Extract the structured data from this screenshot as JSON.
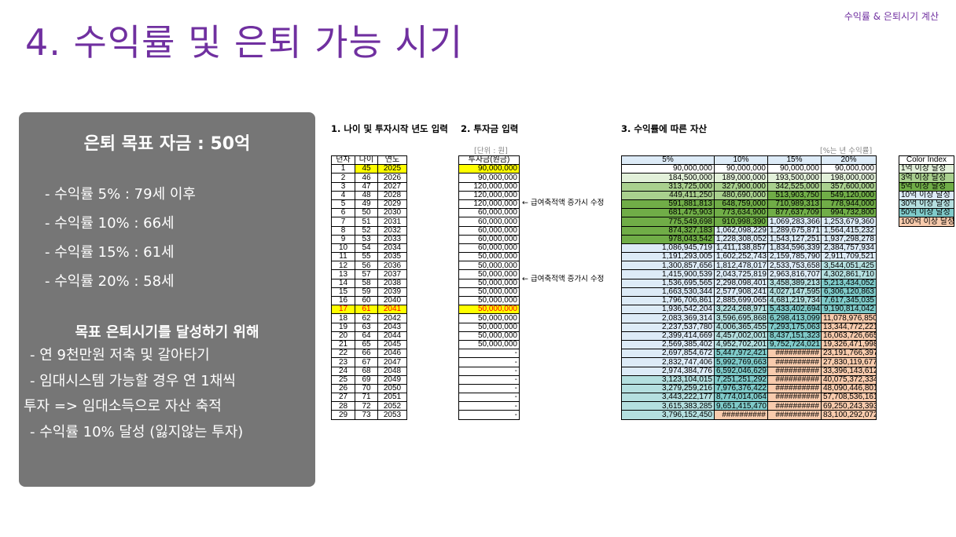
{
  "corner_label": "수익률 & 은퇴시기 계산",
  "title": "4. 수익률 및 은퇴 가능 시기",
  "panel": {
    "heading": "은퇴 목표 자금 : 50억",
    "lines": [
      "- 수익률   5% : 79세 이후",
      "- 수익률 10% : 66세",
      "- 수익률 15% : 61세",
      "- 수익률 20% : 58세"
    ],
    "subheading": "목표 은퇴시기를 달성하기 위해",
    "notes": [
      "- 연 9천만원 저축 및 갈아타기",
      "- 임대시스템 가능할 경우 연 1채씩",
      "투자 => 임대소득으로 자산 축적",
      "- 수익률 10% 달성 (잃지않는 투자)"
    ]
  },
  "section1": {
    "label": "1. 나이 및 투자시작 년도 입력",
    "headers": [
      "년차",
      "나이",
      "연도"
    ]
  },
  "section2": {
    "label": "2. 투자금 입력",
    "unit": "[단위 : 원]",
    "header": "투자금(원금)"
  },
  "section3": {
    "label": "3. 수익률에 따른 자산",
    "unit": "[%는 년 수익률]",
    "headers": [
      "5%",
      "10%",
      "15%",
      "20%"
    ]
  },
  "notes": {
    "row6": "← 급여축적액 증가시 수정",
    "row11": "← 급여축적액 증가시 수정"
  },
  "rows": [
    {
      "n": "1",
      "age": "45",
      "year": "2025",
      "inv": "90,000,000",
      "v": [
        "90,000,000",
        "90,000,000",
        "90,000,000",
        "90,000,000"
      ]
    },
    {
      "n": "2",
      "age": "46",
      "year": "2026",
      "inv": "90,000,000",
      "v": [
        "184,500,000",
        "189,000,000",
        "193,500,000",
        "198,000,000"
      ]
    },
    {
      "n": "3",
      "age": "47",
      "year": "2027",
      "inv": "120,000,000",
      "v": [
        "313,725,000",
        "327,900,000",
        "342,525,000",
        "357,600,000"
      ]
    },
    {
      "n": "4",
      "age": "48",
      "year": "2028",
      "inv": "120,000,000",
      "v": [
        "449,411,250",
        "480,690,000",
        "513,903,750",
        "549,120,000"
      ]
    },
    {
      "n": "5",
      "age": "49",
      "year": "2029",
      "inv": "120,000,000",
      "v": [
        "591,881,813",
        "648,759,000",
        "710,989,313",
        "778,944,000"
      ]
    },
    {
      "n": "6",
      "age": "50",
      "year": "2030",
      "inv": "60,000,000",
      "v": [
        "681,475,903",
        "773,634,900",
        "877,637,709",
        "994,732,800"
      ]
    },
    {
      "n": "7",
      "age": "51",
      "year": "2031",
      "inv": "60,000,000",
      "v": [
        "775,549,698",
        "910,998,390",
        "1,069,283,366",
        "1,253,679,360"
      ]
    },
    {
      "n": "8",
      "age": "52",
      "year": "2032",
      "inv": "60,000,000",
      "v": [
        "874,327,183",
        "1,062,098,229",
        "1,289,675,871",
        "1,564,415,232"
      ]
    },
    {
      "n": "9",
      "age": "53",
      "year": "2033",
      "inv": "60,000,000",
      "v": [
        "978,043,542",
        "1,228,308,052",
        "1,543,127,251",
        "1,937,298,278"
      ]
    },
    {
      "n": "10",
      "age": "54",
      "year": "2034",
      "inv": "60,000,000",
      "v": [
        "1,086,945,719",
        "1,411,138,857",
        "1,834,596,339",
        "2,384,757,934"
      ]
    },
    {
      "n": "11",
      "age": "55",
      "year": "2035",
      "inv": "50,000,000",
      "v": [
        "1,191,293,005",
        "1,602,252,743",
        "2,159,785,790",
        "2,911,709,521"
      ]
    },
    {
      "n": "12",
      "age": "56",
      "year": "2036",
      "inv": "50,000,000",
      "v": [
        "1,300,857,656",
        "1,812,478,017",
        "2,533,753,658",
        "3,544,051,425"
      ]
    },
    {
      "n": "13",
      "age": "57",
      "year": "2037",
      "inv": "50,000,000",
      "v": [
        "1,415,900,539",
        "2,043,725,819",
        "2,963,816,707",
        "4,302,861,710"
      ]
    },
    {
      "n": "14",
      "age": "58",
      "year": "2038",
      "inv": "50,000,000",
      "v": [
        "1,536,695,565",
        "2,298,098,401",
        "3,458,389,213",
        "5,213,434,052"
      ]
    },
    {
      "n": "15",
      "age": "59",
      "year": "2039",
      "inv": "50,000,000",
      "v": [
        "1,663,530,344",
        "2,577,908,241",
        "4,027,147,595",
        "6,306,120,863"
      ]
    },
    {
      "n": "16",
      "age": "60",
      "year": "2040",
      "inv": "50,000,000",
      "v": [
        "1,796,706,861",
        "2,885,699,065",
        "4,681,219,734",
        "7,617,345,035"
      ]
    },
    {
      "n": "17",
      "age": "61",
      "year": "2041",
      "inv": "50,000,000",
      "v": [
        "1,936,542,204",
        "3,224,268,971",
        "5,433,402,694",
        "9,190,814,042"
      ]
    },
    {
      "n": "18",
      "age": "62",
      "year": "2042",
      "inv": "50,000,000",
      "v": [
        "2,083,369,314",
        "3,596,695,868",
        "6,298,413,099",
        "11,078,976,850"
      ]
    },
    {
      "n": "19",
      "age": "63",
      "year": "2043",
      "inv": "50,000,000",
      "v": [
        "2,237,537,780",
        "4,006,365,455",
        "7,293,175,063",
        "13,344,772,221"
      ]
    },
    {
      "n": "20",
      "age": "64",
      "year": "2044",
      "inv": "50,000,000",
      "v": [
        "2,399,414,669",
        "4,457,002,001",
        "8,437,151,323",
        "16,063,726,665"
      ]
    },
    {
      "n": "21",
      "age": "65",
      "year": "2045",
      "inv": "50,000,000",
      "v": [
        "2,569,385,402",
        "4,952,702,201",
        "9,752,724,021",
        "19,326,471,998"
      ]
    },
    {
      "n": "22",
      "age": "66",
      "year": "2046",
      "inv": "-",
      "v": [
        "2,697,854,672",
        "5,447,972,421",
        "##########",
        "23,191,766,397"
      ]
    },
    {
      "n": "23",
      "age": "67",
      "year": "2047",
      "inv": "-",
      "v": [
        "2,832,747,406",
        "5,992,769,663",
        "##########",
        "27,830,119,677"
      ]
    },
    {
      "n": "24",
      "age": "68",
      "year": "2048",
      "inv": "-",
      "v": [
        "2,974,384,776",
        "6,592,046,629",
        "##########",
        "33,396,143,612"
      ]
    },
    {
      "n": "25",
      "age": "69",
      "year": "2049",
      "inv": "-",
      "v": [
        "3,123,104,015",
        "7,251,251,292",
        "##########",
        "40,075,372,334"
      ]
    },
    {
      "n": "26",
      "age": "70",
      "year": "2050",
      "inv": "-",
      "v": [
        "3,279,259,216",
        "7,976,376,422",
        "##########",
        "48,090,446,801"
      ]
    },
    {
      "n": "27",
      "age": "71",
      "year": "2051",
      "inv": "-",
      "v": [
        "3,443,222,177",
        "8,774,014,064",
        "##########",
        "57,708,536,161"
      ]
    },
    {
      "n": "28",
      "age": "72",
      "year": "2052",
      "inv": "-",
      "v": [
        "3,615,383,285",
        "9,651,415,470",
        "##########",
        "69,250,243,393"
      ]
    },
    {
      "n": "29",
      "age": "73",
      "year": "2053",
      "inv": "-",
      "v": [
        "3,796,152,450",
        "##########",
        "##########",
        "83,100,292,072"
      ]
    }
  ],
  "color_index": {
    "header": "Color Index",
    "items": [
      {
        "label": "1억 이상 달성",
        "color": "#e2f0d9"
      },
      {
        "label": "3억 이상 달성",
        "color": "#a9d08e"
      },
      {
        "label": "5억 이상 달성",
        "color": "#70ad47"
      },
      {
        "label": "10억 이상 달성",
        "color": "#ddebf7"
      },
      {
        "label": "30억 이상 달성",
        "color": "#b4dfdf"
      },
      {
        "label": "50억 이상 달성",
        "color": "#7fcac9"
      },
      {
        "label": "100억 이상 달성",
        "color": "#f8cbad"
      }
    ]
  },
  "colors": {
    "accent": "#7030a0",
    "highlight": "#ffff00",
    "header_blue": "#ddebf7"
  }
}
